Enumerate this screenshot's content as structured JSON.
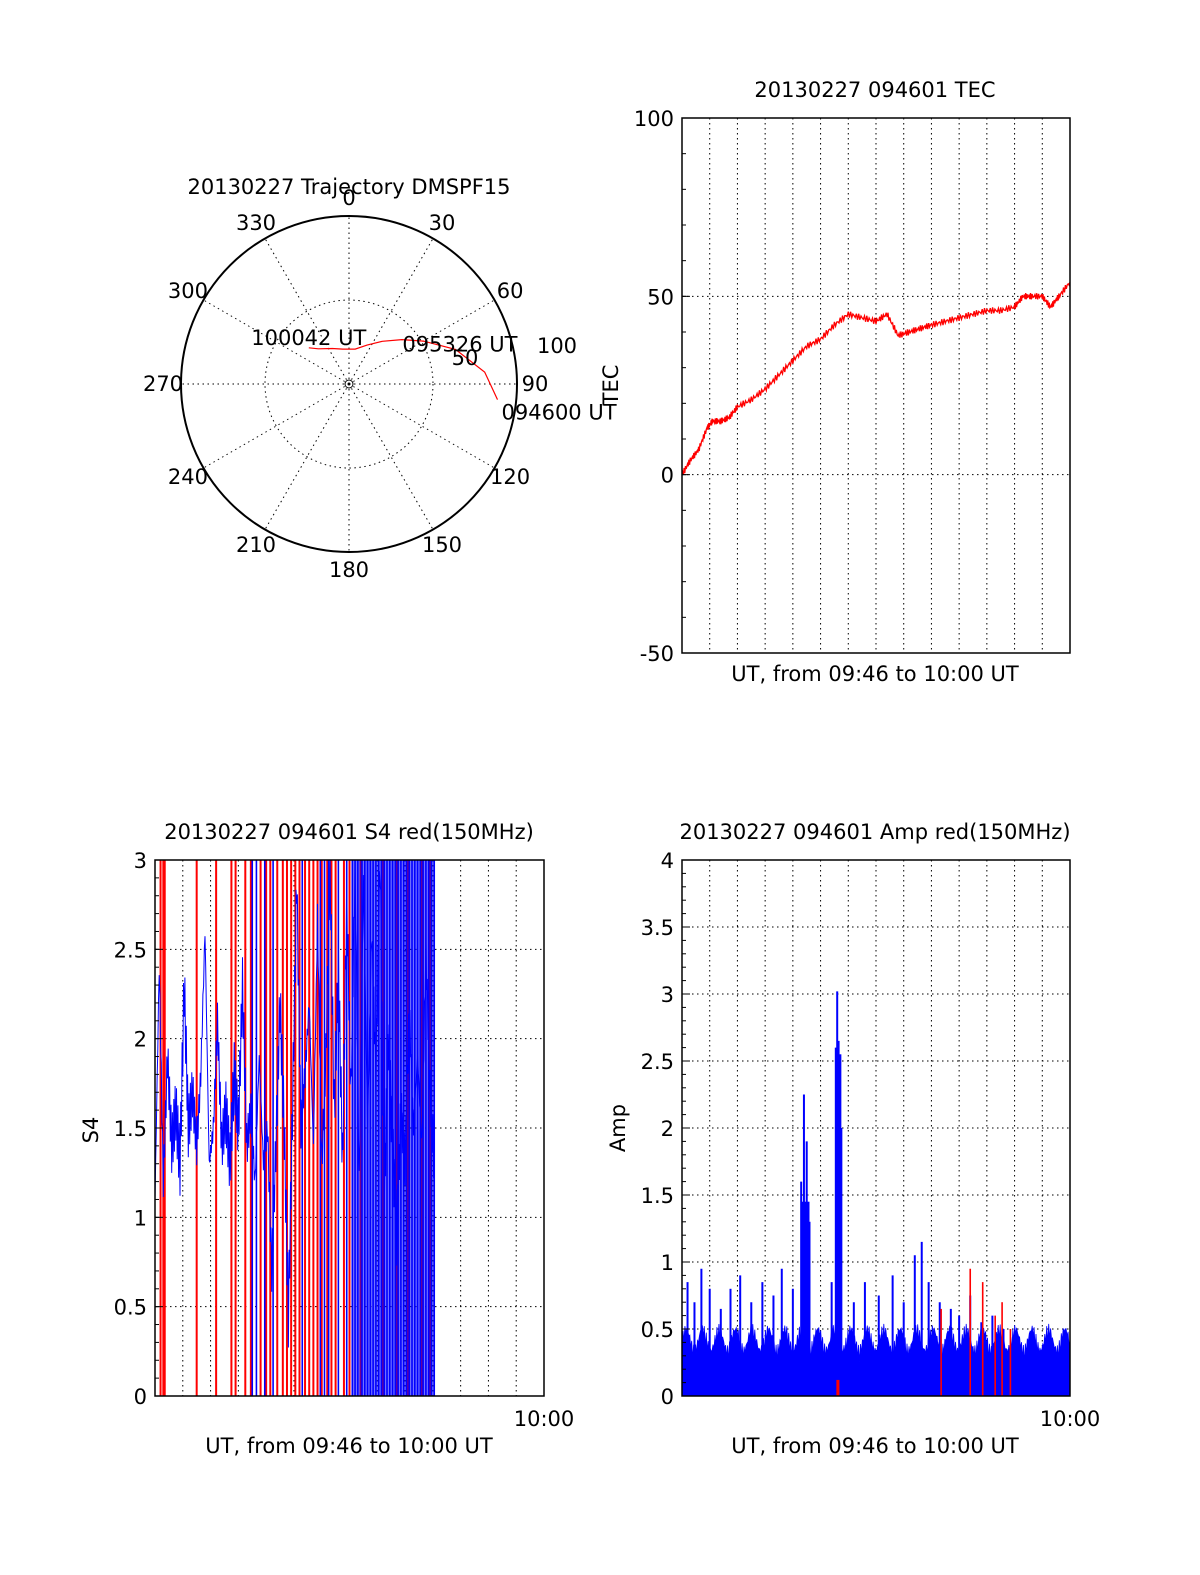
{
  "chart_data": [
    {
      "id": "trajectory",
      "type": "polar",
      "title": "20130227 Trajectory DMSPF15",
      "angle_labels": [
        "0",
        "30",
        "60",
        "90",
        "120",
        "150",
        "180",
        "210",
        "240",
        "270",
        "300",
        "330"
      ],
      "radial_labels": [
        "50",
        "100"
      ],
      "rlim": [
        0,
        100
      ],
      "grid": true,
      "track": {
        "color": "#ff0000",
        "points": [
          {
            "az": 96,
            "el": 10
          },
          {
            "az": 85,
            "el": 17
          },
          {
            "az": 72,
            "el": 30
          },
          {
            "az": 60,
            "el": 44
          },
          {
            "az": 50,
            "el": 53
          },
          {
            "az": 38,
            "el": 61
          },
          {
            "az": 25,
            "el": 67
          },
          {
            "az": 10,
            "el": 71
          },
          {
            "az": 350,
            "el": 71
          },
          {
            "az": 335,
            "el": 69
          },
          {
            "az": 319,
            "el": 65
          },
          {
            "az": 312,
            "el": 61
          }
        ]
      },
      "annotations": [
        {
          "text": "100042 UT",
          "az": 312,
          "el": 61
        },
        {
          "text": "095326 UT",
          "az": 60,
          "el": 52
        },
        {
          "text": "094600 UT",
          "az": 96,
          "el": 10
        }
      ]
    },
    {
      "id": "tec",
      "type": "line",
      "title": "20130227 094601 TEC",
      "ylabel": "TEC",
      "xlabel": "UT, from 09:46 to 10:00 UT",
      "xlim": [
        "09:46",
        "10:00"
      ],
      "ylim": [
        -50,
        100
      ],
      "yticks": [
        "-50",
        "0",
        "50",
        "100"
      ],
      "grid": true,
      "series": [
        {
          "color": "#ff0000",
          "x": [
            0,
            0.3,
            0.6,
            0.9,
            1.1,
            1.4,
            1.7,
            2.0,
            2.5,
            3.0,
            3.5,
            4.0,
            4.5,
            5.0,
            5.5,
            6.0,
            6.5,
            7.0,
            7.4,
            7.8,
            8.2,
            8.6,
            9.0,
            9.5,
            10.0,
            10.5,
            11.0,
            11.5,
            12.0,
            12.3,
            12.6,
            13.0,
            13.3,
            13.6,
            14.0
          ],
          "y": [
            0,
            4,
            7,
            13,
            15,
            15,
            16,
            19,
            21,
            24,
            28,
            32,
            36,
            38,
            42,
            45,
            44,
            43,
            45,
            39,
            40,
            41,
            42,
            43,
            44,
            45,
            46,
            46,
            47,
            50,
            50,
            50,
            47,
            50,
            54
          ]
        }
      ]
    },
    {
      "id": "s4",
      "type": "line",
      "title": "20130227 094601 S4 red(150MHz)",
      "ylabel": "S4",
      "xlabel": "UT, from 09:46 to 10:00 UT",
      "xtick_end": "10:00",
      "xlim": [
        "09:46",
        "10:00"
      ],
      "ylim": [
        0,
        3
      ],
      "yticks": [
        "0",
        "0.5",
        "1",
        "1.5",
        "2",
        "2.5",
        "3"
      ],
      "grid": true,
      "series": [
        {
          "color": "#0000ff",
          "x": [
            0,
            0.15,
            0.3,
            0.45,
            0.6,
            0.75,
            0.9,
            1.05,
            1.2,
            1.35,
            1.5,
            1.65,
            1.8,
            1.95,
            2.1,
            2.25,
            2.4,
            2.55,
            2.7,
            2.85,
            3.0,
            3.15,
            3.3,
            3.45,
            3.6,
            3.75,
            3.9,
            4.05,
            4.2,
            4.35,
            4.5,
            4.65,
            4.8,
            4.95,
            5.1,
            5.25,
            5.4,
            5.55,
            5.7,
            5.85,
            6.0,
            6.15,
            6.3,
            6.45,
            6.6,
            6.75,
            6.9,
            7.05,
            7.2,
            7.35,
            7.5,
            7.65,
            7.8,
            7.95,
            8.1,
            8.25,
            8.4,
            8.55,
            8.7,
            8.85,
            9.0,
            9.15,
            9.3,
            9.45,
            9.6,
            9.75,
            9.9,
            10.05
          ],
          "y": [
            1.1,
            2.4,
            1.2,
            1.9,
            1.4,
            1.6,
            1.3,
            2.3,
            1.5,
            1.7,
            1.4,
            1.8,
            2.6,
            1.3,
            1.5,
            2.1,
            1.4,
            1.6,
            1.3,
            1.8,
            1.5,
            2.3,
            1.4,
            1.6,
            1.2,
            1.9,
            1.3,
            1.5,
            0.7,
            1.4,
            2.2,
            1.5,
            0.45,
            1.6,
            2.9,
            1.5,
            1.8,
            2.2,
            1.4,
            2.7,
            1.3,
            1.9,
            3.0,
            1.6,
            2.4,
            1.3,
            2.8,
            1.7,
            3.0,
            1.2,
            2.9,
            1.5,
            2.6,
            1.8,
            3.0,
            1.1,
            2.0,
            1.4,
            0.9,
            1.6,
            1.3,
            2.2,
            1.5,
            1.9,
            1.4,
            2.5,
            1.7,
            1.3
          ]
        }
      ],
      "red_spikes_x": [
        0.2,
        0.3,
        0.35,
        1.5,
        2.2,
        2.75,
        2.9,
        3.25,
        3.45,
        3.8,
        4.0,
        4.15,
        4.4,
        4.6,
        4.75,
        4.9,
        5.05,
        5.2,
        5.4,
        5.55,
        5.7,
        5.85,
        6.0,
        6.2,
        6.35,
        6.5,
        6.8,
        7.0,
        7.4,
        8.2,
        8.7,
        9.1,
        9.6,
        9.9
      ],
      "blue_spikes_x": [
        3.5,
        3.65,
        3.95,
        4.25,
        5.3,
        5.95,
        6.1,
        6.25,
        6.6,
        6.9,
        7.1,
        7.2,
        7.3,
        7.45,
        7.55,
        7.65,
        7.75,
        7.85,
        7.95,
        8.05,
        8.15,
        8.25,
        8.35,
        8.45,
        8.55,
        8.65,
        8.75,
        8.85,
        8.95,
        9.05,
        9.15,
        9.25,
        9.35,
        9.45,
        9.55,
        9.65,
        9.75,
        9.85,
        9.95,
        10.05
      ]
    },
    {
      "id": "amp",
      "type": "line",
      "title": "20130227 094601 Amp red(150MHz)",
      "ylabel": "Amp",
      "xlabel": "UT, from 09:46 to 10:00 UT",
      "xtick_end": "10:00",
      "xlim": [
        "09:46",
        "10:00"
      ],
      "ylim": [
        0,
        4
      ],
      "yticks": [
        "0",
        "0.5",
        "1",
        "1.5",
        "2",
        "2.5",
        "3",
        "3.5",
        "4"
      ],
      "grid": true,
      "series": [
        {
          "color": "#0000ff",
          "name": "amp",
          "peaks": [
            {
              "x": 0.2,
              "y": 0.85
            },
            {
              "x": 0.45,
              "y": 0.7
            },
            {
              "x": 0.7,
              "y": 0.95
            },
            {
              "x": 1.0,
              "y": 0.8
            },
            {
              "x": 1.4,
              "y": 0.65
            },
            {
              "x": 1.75,
              "y": 0.8
            },
            {
              "x": 2.1,
              "y": 0.9
            },
            {
              "x": 2.5,
              "y": 0.7
            },
            {
              "x": 2.9,
              "y": 0.85
            },
            {
              "x": 3.3,
              "y": 0.75
            },
            {
              "x": 3.6,
              "y": 0.95
            },
            {
              "x": 4.0,
              "y": 0.8
            },
            {
              "x": 4.3,
              "y": 1.6
            },
            {
              "x": 4.4,
              "y": 2.25
            },
            {
              "x": 4.5,
              "y": 1.9
            },
            {
              "x": 4.6,
              "y": 1.3
            },
            {
              "x": 5.4,
              "y": 0.85
            },
            {
              "x": 5.55,
              "y": 2.6
            },
            {
              "x": 5.6,
              "y": 3.02
            },
            {
              "x": 5.65,
              "y": 2.65
            },
            {
              "x": 5.75,
              "y": 2.0
            },
            {
              "x": 6.2,
              "y": 0.7
            },
            {
              "x": 6.6,
              "y": 0.85
            },
            {
              "x": 7.1,
              "y": 0.75
            },
            {
              "x": 7.6,
              "y": 0.9
            },
            {
              "x": 8.0,
              "y": 0.7
            },
            {
              "x": 8.4,
              "y": 1.05
            },
            {
              "x": 8.65,
              "y": 1.15
            },
            {
              "x": 8.9,
              "y": 0.85
            },
            {
              "x": 9.3,
              "y": 0.7
            },
            {
              "x": 9.7,
              "y": 0.65
            },
            {
              "x": 10.0,
              "y": 0.6
            },
            {
              "x": 10.4,
              "y": 0.75
            },
            {
              "x": 10.8,
              "y": 0.55
            },
            {
              "x": 11.2,
              "y": 0.6
            },
            {
              "x": 11.6,
              "y": 0.5
            }
          ]
        },
        {
          "color": "#ff0000",
          "name": "amp-red",
          "peaks": [
            {
              "x": 5.6,
              "y": 0.12
            },
            {
              "x": 9.35,
              "y": 0.65
            },
            {
              "x": 10.4,
              "y": 0.95
            },
            {
              "x": 10.85,
              "y": 0.85
            },
            {
              "x": 11.3,
              "y": 0.6
            },
            {
              "x": 11.55,
              "y": 0.7
            },
            {
              "x": 11.85,
              "y": 0.5
            }
          ]
        }
      ]
    }
  ]
}
